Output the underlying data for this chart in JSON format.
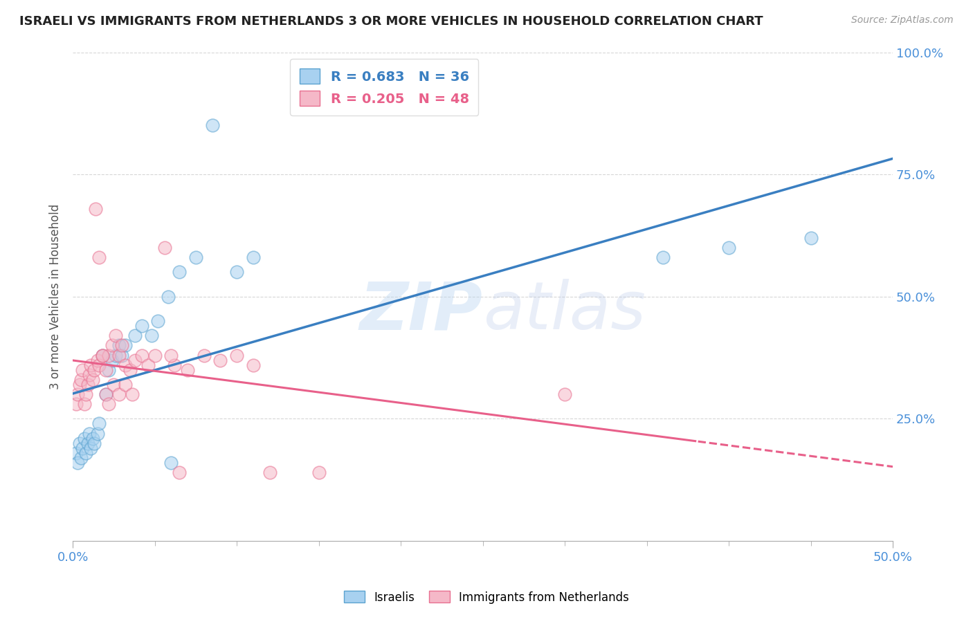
{
  "title": "ISRAELI VS IMMIGRANTS FROM NETHERLANDS 3 OR MORE VEHICLES IN HOUSEHOLD CORRELATION CHART",
  "source": "Source: ZipAtlas.com",
  "xmin": 0.0,
  "xmax": 0.5,
  "ymin": 0.0,
  "ymax": 1.0,
  "watermark": "ZIPatlas",
  "legend_labels": [
    "Israelis",
    "Immigrants from Netherlands"
  ],
  "israelis_x": [
    0.002,
    0.003,
    0.004,
    0.005,
    0.006,
    0.007,
    0.008,
    0.009,
    0.01,
    0.011,
    0.012,
    0.013,
    0.015,
    0.016,
    0.018,
    0.02,
    0.022,
    0.024,
    0.026,
    0.028,
    0.03,
    0.032,
    0.038,
    0.042,
    0.048,
    0.052,
    0.058,
    0.065,
    0.075,
    0.085,
    0.1,
    0.11,
    0.36,
    0.4,
    0.45,
    0.06
  ],
  "israelis_y": [
    0.18,
    0.16,
    0.2,
    0.17,
    0.19,
    0.21,
    0.18,
    0.2,
    0.22,
    0.19,
    0.21,
    0.2,
    0.22,
    0.24,
    0.38,
    0.3,
    0.35,
    0.37,
    0.38,
    0.4,
    0.38,
    0.4,
    0.42,
    0.44,
    0.42,
    0.45,
    0.5,
    0.55,
    0.58,
    0.85,
    0.55,
    0.58,
    0.58,
    0.6,
    0.62,
    0.16
  ],
  "netherlands_x": [
    0.002,
    0.003,
    0.004,
    0.005,
    0.006,
    0.007,
    0.008,
    0.009,
    0.01,
    0.011,
    0.012,
    0.013,
    0.015,
    0.016,
    0.018,
    0.02,
    0.022,
    0.024,
    0.026,
    0.028,
    0.03,
    0.032,
    0.035,
    0.038,
    0.042,
    0.046,
    0.05,
    0.056,
    0.062,
    0.07,
    0.08,
    0.09,
    0.1,
    0.11,
    0.12,
    0.06,
    0.065,
    0.014,
    0.016,
    0.018,
    0.02,
    0.022,
    0.025,
    0.028,
    0.032,
    0.036,
    0.3,
    0.15
  ],
  "netherlands_y": [
    0.28,
    0.3,
    0.32,
    0.33,
    0.35,
    0.28,
    0.3,
    0.32,
    0.34,
    0.36,
    0.33,
    0.35,
    0.37,
    0.36,
    0.38,
    0.35,
    0.38,
    0.4,
    0.42,
    0.38,
    0.4,
    0.36,
    0.35,
    0.37,
    0.38,
    0.36,
    0.38,
    0.6,
    0.36,
    0.35,
    0.38,
    0.37,
    0.38,
    0.36,
    0.14,
    0.38,
    0.14,
    0.68,
    0.58,
    0.38,
    0.3,
    0.28,
    0.32,
    0.3,
    0.32,
    0.3,
    0.3,
    0.14
  ],
  "blue_dot_color": "#a8d1f0",
  "blue_edge_color": "#5ba3d0",
  "pink_dot_color": "#f5b8c8",
  "pink_edge_color": "#e87090",
  "blue_line_color": "#3a7fc1",
  "pink_line_color": "#e8608a",
  "background_color": "#ffffff",
  "grid_color": "#cccccc"
}
